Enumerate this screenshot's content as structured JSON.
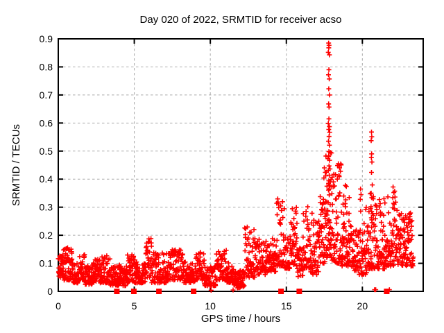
{
  "chart_data": {
    "type": "scatter",
    "title": "Day 020 of 2022, SRMTID for receiver acso",
    "xlabel": "GPS time / hours",
    "ylabel": "SRMTID / TECUs",
    "xlim": [
      0,
      24
    ],
    "ylim": [
      0,
      0.9
    ],
    "xticks": {
      "values": [
        0,
        5,
        10,
        15,
        20
      ],
      "labels": [
        "0",
        "5",
        "10",
        "15",
        "20"
      ]
    },
    "yticks": {
      "values": [
        0,
        0.1,
        0.2,
        0.3,
        0.4,
        0.5,
        0.6,
        0.7,
        0.8,
        0.9
      ],
      "labels": [
        "0",
        "0.1",
        "0.2",
        "0.3",
        "0.4",
        "0.5",
        "0.6",
        "0.7",
        "0.8",
        "0.9"
      ]
    },
    "grid": true,
    "legend": "none",
    "marker": {
      "shape": "plus",
      "color": "#ff0000",
      "size": 7
    },
    "zero_marker": {
      "shape": "filled-square",
      "color": "#ff0000",
      "size": 8
    },
    "colors": {
      "marker": "#ff0000",
      "grid": "#aaaaaa",
      "axis": "#000000",
      "text": "#000000",
      "background": "#ffffff"
    },
    "density_bands_legend": [
      "x_start",
      "x_end",
      "n_points",
      "y_min",
      "y_max",
      "skew_exponent"
    ],
    "density_bands": [
      [
        0.0,
        0.3,
        28,
        0.05,
        0.13,
        1.4
      ],
      [
        0.3,
        0.9,
        55,
        0.04,
        0.16,
        1.2
      ],
      [
        0.9,
        1.3,
        38,
        0.03,
        0.11,
        1.4
      ],
      [
        1.3,
        1.75,
        40,
        0.04,
        0.145,
        1.7
      ],
      [
        1.75,
        2.3,
        50,
        0.025,
        0.095,
        1.4
      ],
      [
        2.3,
        2.75,
        40,
        0.03,
        0.12,
        1.5
      ],
      [
        2.75,
        3.4,
        58,
        0.03,
        0.13,
        1.7
      ],
      [
        3.4,
        4.5,
        95,
        0.02,
        0.095,
        1.4
      ],
      [
        4.5,
        5.2,
        62,
        0.03,
        0.13,
        1.5
      ],
      [
        5.2,
        5.75,
        48,
        0.03,
        0.1,
        1.4
      ],
      [
        5.75,
        6.15,
        34,
        0.05,
        0.19,
        1.6
      ],
      [
        6.15,
        7.2,
        88,
        0.03,
        0.14,
        1.7
      ],
      [
        7.2,
        8.2,
        82,
        0.04,
        0.15,
        1.5
      ],
      [
        8.2,
        9.0,
        66,
        0.03,
        0.105,
        1.4
      ],
      [
        9.0,
        9.6,
        50,
        0.04,
        0.14,
        1.5
      ],
      [
        9.6,
        10.35,
        60,
        0.02,
        0.09,
        1.3
      ],
      [
        10.35,
        11.05,
        56,
        0.04,
        0.15,
        1.6
      ],
      [
        11.05,
        11.55,
        42,
        0.03,
        0.105,
        1.5
      ],
      [
        11.55,
        12.25,
        55,
        0.012,
        0.075,
        1.3
      ],
      [
        12.25,
        12.95,
        55,
        0.05,
        0.23,
        1.6
      ],
      [
        12.95,
        13.65,
        52,
        0.06,
        0.19,
        1.4
      ],
      [
        13.65,
        14.35,
        58,
        0.07,
        0.19,
        1.4
      ],
      [
        14.35,
        14.9,
        45,
        0.09,
        0.335,
        1.8
      ],
      [
        14.9,
        15.3,
        34,
        0.08,
        0.2,
        1.3
      ],
      [
        15.3,
        15.7,
        36,
        0.09,
        0.3,
        1.5
      ],
      [
        15.7,
        16.1,
        34,
        0.05,
        0.16,
        1.3
      ],
      [
        16.1,
        16.6,
        44,
        0.08,
        0.31,
        1.6
      ],
      [
        16.6,
        17.15,
        46,
        0.06,
        0.28,
        1.5
      ],
      [
        17.15,
        17.6,
        46,
        0.1,
        0.34,
        1.6
      ],
      [
        17.6,
        18.0,
        52,
        0.12,
        0.5,
        2.0
      ],
      [
        18.0,
        18.65,
        58,
        0.1,
        0.46,
        2.0
      ],
      [
        18.65,
        19.15,
        52,
        0.09,
        0.38,
        1.8
      ],
      [
        19.15,
        19.8,
        50,
        0.07,
        0.24,
        1.5
      ],
      [
        19.8,
        20.35,
        48,
        0.06,
        0.3,
        1.8
      ],
      [
        20.35,
        20.8,
        42,
        0.08,
        0.4,
        2.0
      ],
      [
        20.8,
        21.55,
        68,
        0.08,
        0.33,
        1.7
      ],
      [
        21.55,
        22.3,
        66,
        0.09,
        0.36,
        1.7
      ],
      [
        22.3,
        23.35,
        95,
        0.09,
        0.28,
        1.4
      ]
    ],
    "peak_points": [
      [
        17.78,
        0.885
      ],
      [
        17.81,
        0.877
      ],
      [
        17.79,
        0.868
      ],
      [
        17.76,
        0.852
      ],
      [
        17.83,
        0.843
      ],
      [
        17.8,
        0.79
      ],
      [
        17.77,
        0.772
      ],
      [
        17.82,
        0.757
      ],
      [
        17.79,
        0.722
      ],
      [
        17.84,
        0.7
      ],
      [
        17.78,
        0.668
      ],
      [
        17.81,
        0.657
      ],
      [
        17.8,
        0.615
      ],
      [
        17.76,
        0.598
      ],
      [
        17.83,
        0.587
      ],
      [
        17.79,
        0.577
      ],
      [
        17.85,
        0.567
      ],
      [
        17.81,
        0.552
      ],
      [
        17.77,
        0.535
      ],
      [
        17.83,
        0.521
      ],
      [
        17.8,
        0.498
      ],
      [
        17.78,
        0.481
      ],
      [
        17.84,
        0.467
      ],
      [
        17.81,
        0.447
      ],
      [
        17.76,
        0.431
      ],
      [
        17.82,
        0.414
      ],
      [
        17.79,
        0.394
      ],
      [
        17.85,
        0.377
      ],
      [
        17.77,
        0.361
      ],
      [
        17.82,
        0.344
      ],
      [
        17.5,
        0.44
      ],
      [
        17.56,
        0.424
      ],
      [
        17.47,
        0.404
      ],
      [
        17.59,
        0.412
      ],
      [
        18.42,
        0.455
      ],
      [
        18.5,
        0.44
      ],
      [
        18.56,
        0.428
      ],
      [
        18.46,
        0.414
      ],
      [
        18.35,
        0.4
      ],
      [
        19.88,
        0.365
      ],
      [
        19.91,
        0.345
      ],
      [
        19.86,
        0.328
      ],
      [
        20.6,
        0.568
      ],
      [
        20.62,
        0.551
      ],
      [
        20.58,
        0.537
      ],
      [
        20.61,
        0.49
      ],
      [
        20.59,
        0.477
      ],
      [
        20.63,
        0.461
      ],
      [
        20.6,
        0.424
      ],
      [
        20.58,
        0.35
      ],
      [
        20.62,
        0.334
      ],
      [
        20.57,
        0.302
      ],
      [
        20.61,
        0.284
      ],
      [
        20.59,
        0.262
      ],
      [
        20.64,
        0.245
      ],
      [
        21.42,
        0.33
      ],
      [
        21.48,
        0.315
      ],
      [
        22.02,
        0.372
      ],
      [
        22.07,
        0.352
      ],
      [
        22.0,
        0.334
      ],
      [
        22.05,
        0.314
      ],
      [
        22.1,
        0.294
      ],
      [
        10.05,
        0.004
      ],
      [
        11.5,
        0.005
      ],
      [
        20.8,
        0.006
      ],
      [
        20.88,
        0.006
      ],
      [
        21.78,
        0.006
      ]
    ],
    "zero_square_x": [
      3.85,
      4.97,
      6.62,
      8.9,
      14.65,
      15.85,
      21.6
    ]
  }
}
